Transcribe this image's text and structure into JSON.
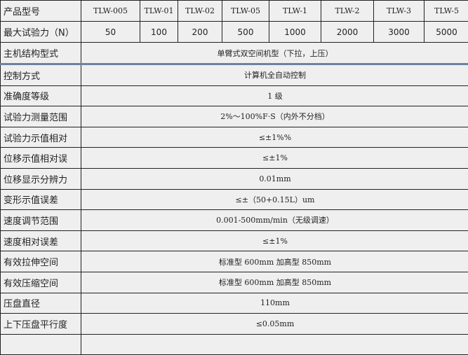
{
  "header": {
    "label": "产品型号",
    "models": [
      "TLW-005",
      "TLW-01",
      "TLW-02",
      "TLW-05",
      "TLW-1",
      "TLW-2",
      "TLW-3",
      "TLW-5"
    ]
  },
  "max_force": {
    "label": "最大试验力（N）",
    "values": [
      "50",
      "100",
      "200",
      "500",
      "1000",
      "2000",
      "3000",
      "5000"
    ]
  },
  "rows": [
    {
      "label": "主机结构型式",
      "value": "单臂式双空间机型（下拉，上压）"
    },
    {
      "label": "控制方式",
      "value": "计算机全自动控制"
    },
    {
      "label": "准确度等级",
      "value": "1 级"
    },
    {
      "label": "试验力测量范围",
      "value": "2%～100%F·S（内外不分档）"
    },
    {
      "label": "试验力示值相对",
      "value": "≤±1%%"
    },
    {
      "label": "位移示值相对误",
      "value": "≤±1%"
    },
    {
      "label": "位移显示分辨力",
      "value": "0.01mm"
    },
    {
      "label": "变形示值误差",
      "value": "≤±（50+0.15L）um"
    },
    {
      "label": "速度调节范围",
      "value": "0.001-500mm/min（无级调速）"
    },
    {
      "label": "速度相对误差",
      "value": "≤±1%"
    },
    {
      "label": "有效拉伸空间",
      "value": "标准型 600mm 加高型 850mm"
    },
    {
      "label": "有效压缩空间",
      "value": "标准型 600mm 加高型 850mm"
    },
    {
      "label": "压盘直径",
      "value": "110mm"
    },
    {
      "label": "上下压盘平行度",
      "value": "≤0.05mm"
    }
  ]
}
